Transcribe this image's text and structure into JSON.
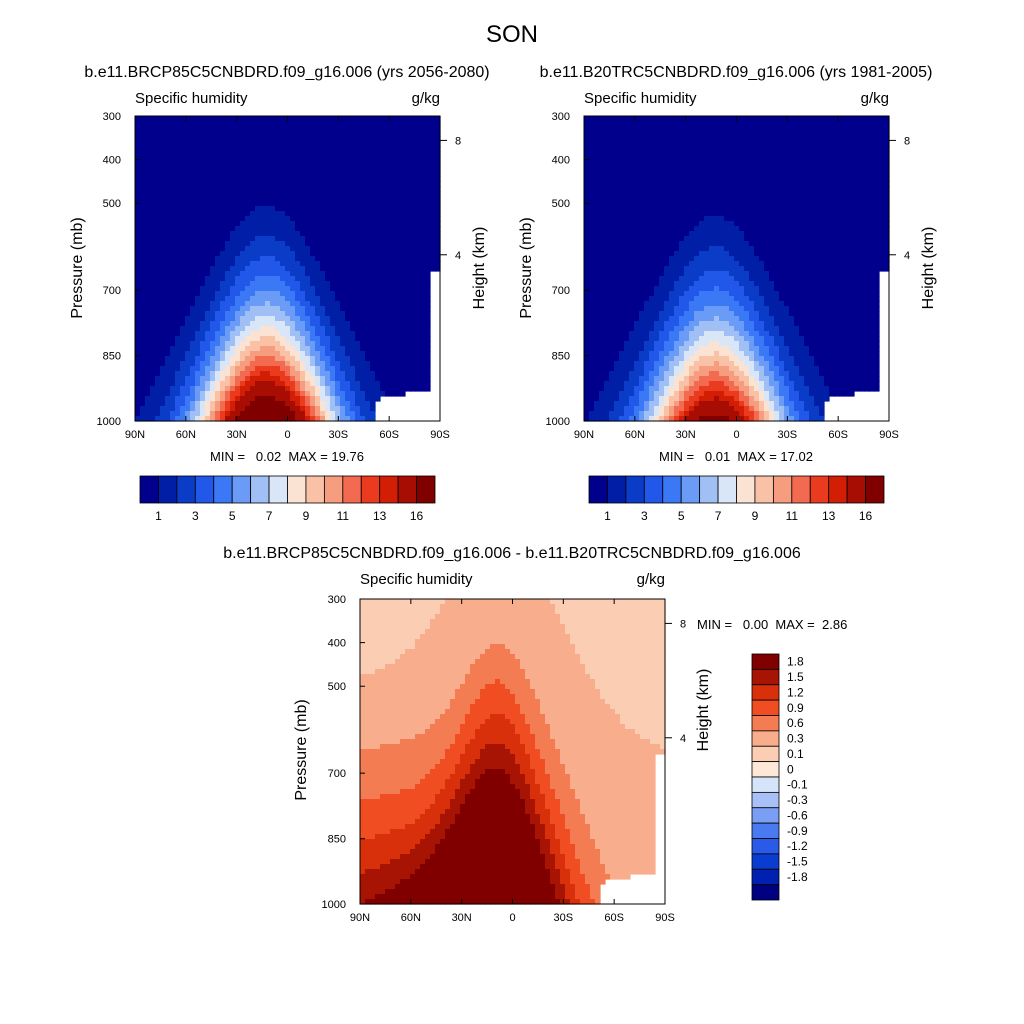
{
  "page_title": "SON",
  "chart_data": [
    {
      "type": "heatmap",
      "id": "p1",
      "title": "b.e11.BRCP85C5CNBDRD.f09_g16.006 (yrs 2056-2080)",
      "left_label": "Specific humidity",
      "right_label": "g/kg",
      "ylabel": "Pressure (mb)",
      "y2label": "Height (km)",
      "x_ticks": [
        "90N",
        "60N",
        "30N",
        "0",
        "30S",
        "60S",
        "90S"
      ],
      "y_ticks": [
        "300",
        "400",
        "500",
        "700",
        "850",
        "1000"
      ],
      "y2_ticks": [
        "8",
        "4"
      ],
      "stats": "MIN =   0.02  MAX = 19.76",
      "min": 0.02,
      "max": 19.76,
      "colorbar_labels": [
        "1",
        "3",
        "5",
        "7",
        "9",
        "11",
        "13",
        "16"
      ],
      "levels": [
        1,
        2,
        3,
        4,
        5,
        6,
        7,
        8,
        9,
        10,
        11,
        12,
        13,
        14,
        16
      ],
      "colors": [
        "#00008c",
        "#001ea6",
        "#0a3cc8",
        "#2158ea",
        "#3a78f5",
        "#6a9cf7",
        "#9fbff5",
        "#d8e6f8",
        "#fbe3d4",
        "#f9c1a6",
        "#f69d7f",
        "#f26a4f",
        "#ea3b1e",
        "#d21e04",
        "#a80d04",
        "#800000"
      ]
    },
    {
      "type": "heatmap",
      "id": "p2",
      "title": "b.e11.B20TRC5CNBDRD.f09_g16.006 (yrs 1981-2005)",
      "left_label": "Specific humidity",
      "right_label": "g/kg",
      "ylabel": "Pressure (mb)",
      "y2label": "Height (km)",
      "x_ticks": [
        "90N",
        "60N",
        "30N",
        "0",
        "30S",
        "60S",
        "90S"
      ],
      "y_ticks": [
        "300",
        "400",
        "500",
        "700",
        "850",
        "1000"
      ],
      "y2_ticks": [
        "8",
        "4"
      ],
      "stats": "MIN =   0.01  MAX = 17.02",
      "min": 0.01,
      "max": 17.02,
      "colorbar_labels": [
        "1",
        "3",
        "5",
        "7",
        "9",
        "11",
        "13",
        "16"
      ],
      "levels": [
        1,
        2,
        3,
        4,
        5,
        6,
        7,
        8,
        9,
        10,
        11,
        12,
        13,
        14,
        16
      ],
      "colors": [
        "#00008c",
        "#001ea6",
        "#0a3cc8",
        "#2158ea",
        "#3a78f5",
        "#6a9cf7",
        "#9fbff5",
        "#d8e6f8",
        "#fbe3d4",
        "#f9c1a6",
        "#f69d7f",
        "#f26a4f",
        "#ea3b1e",
        "#d21e04",
        "#a80d04",
        "#800000"
      ]
    },
    {
      "type": "heatmap",
      "id": "p3",
      "title": "b.e11.BRCP85C5CNBDRD.f09_g16.006 - b.e11.B20TRC5CNBDRD.f09_g16.006",
      "left_label": "Specific humidity",
      "right_label": "g/kg",
      "ylabel": "Pressure (mb)",
      "y2label": "Height (km)",
      "x_ticks": [
        "90N",
        "60N",
        "30N",
        "0",
        "30S",
        "60S",
        "90S"
      ],
      "y_ticks": [
        "300",
        "400",
        "500",
        "700",
        "850",
        "1000"
      ],
      "y2_ticks": [
        "8",
        "4"
      ],
      "stats": "MIN =   0.00  MAX =  2.86",
      "min": 0.0,
      "max": 2.86,
      "colorbar_labels": [
        "1.8",
        "1.5",
        "1.2",
        "0.9",
        "0.6",
        "0.3",
        "0.1",
        "0",
        "-0.1",
        "-0.3",
        "-0.6",
        "-0.9",
        "-1.2",
        "-1.5",
        "-1.8"
      ],
      "levels": [
        -1.8,
        -1.5,
        -1.2,
        -0.9,
        -0.6,
        -0.3,
        -0.1,
        0,
        0.1,
        0.3,
        0.6,
        0.9,
        1.2,
        1.5,
        1.8
      ],
      "colors": [
        "#000080",
        "#0020b0",
        "#0a3cd0",
        "#2a5ae8",
        "#4a7af0",
        "#7a9ef4",
        "#a8c0f6",
        "#d6e4fa",
        "#fde8d8",
        "#fbcdb2",
        "#f8ad8c",
        "#f47c52",
        "#f04e22",
        "#d8300a",
        "#a81404",
        "#800000"
      ]
    }
  ]
}
